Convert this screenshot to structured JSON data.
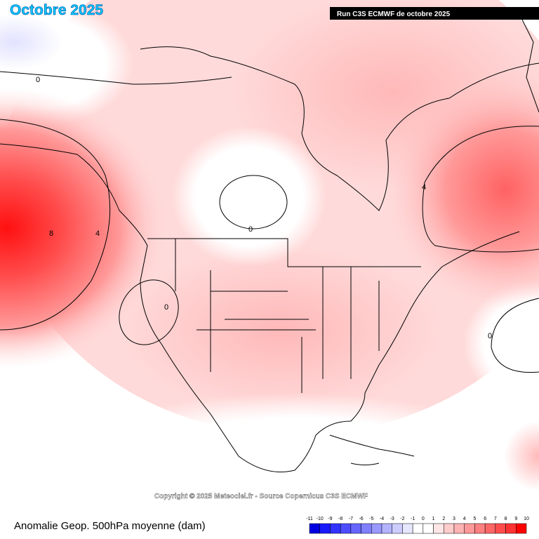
{
  "header": {
    "title": "Octobre 2025",
    "run": "Run C3S ECMWF de octobre 2025"
  },
  "map": {
    "copyright": "Copyright © 2025 Meteociel.fr - Source Copernicus C3S ECMWF",
    "contour_labels": [
      "0",
      "8",
      "4",
      "0",
      "0",
      "4",
      "0"
    ]
  },
  "footer": {
    "caption": "Anomalie Geop. 500hPa moyenne (dam)"
  },
  "legend": {
    "ticks": [
      -11,
      -10,
      -9,
      -8,
      -7,
      -6,
      -5,
      -4,
      -3,
      -2,
      -1,
      0,
      1,
      2,
      3,
      4,
      5,
      6,
      7,
      8,
      9,
      10
    ],
    "colors": [
      "#0000e0",
      "#1a1aff",
      "#3333ff",
      "#4d4dff",
      "#6666ff",
      "#8080ff",
      "#9999ff",
      "#b3b3ff",
      "#ccccff",
      "#e6e6ff",
      "#ffffff",
      "#ffffff",
      "#ffe6e6",
      "#ffcccc",
      "#ffb3b3",
      "#ff9999",
      "#ff8080",
      "#ff6666",
      "#ff4d4d",
      "#ff3333",
      "#ff0000"
    ]
  }
}
